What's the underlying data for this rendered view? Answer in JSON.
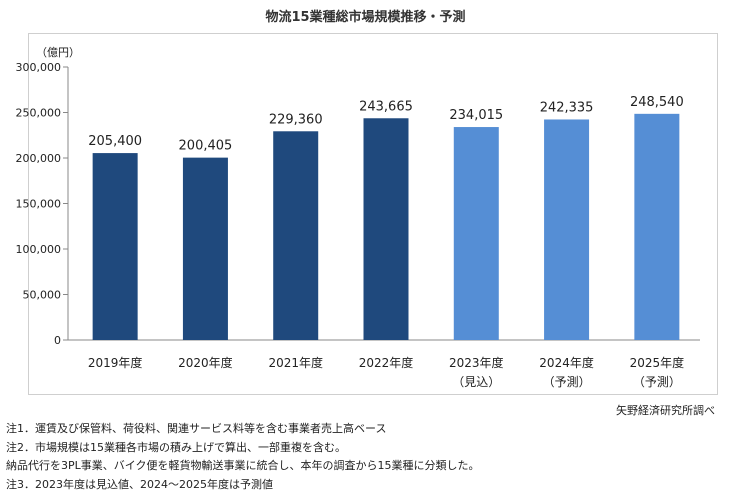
{
  "title": "物流15業種総市場規模推移・予測",
  "source": "矢野経済研究所調べ",
  "notes": [
    "注1．運賃及び保管料、荷役料、関連サービス料等を含む事業者売上高ベース",
    "注2．市場規模は15業種各市場の積み上げで算出、一部重複を含む。",
    "納品代行を3PL事業、バイク便を軽貨物輸送事業に統合し、本年の調査から15業種に分類した。",
    "注3．2023年度は見込値、2024～2025年度は予測値"
  ],
  "colors": {
    "actual": "#1f497d",
    "forecast": "#558ed5"
  },
  "chart_data": {
    "type": "bar",
    "unit_label": "（億円）",
    "categories": [
      "2019年度",
      "2020年度",
      "2021年度",
      "2022年度",
      "2023年度",
      "2024年度",
      "2025年度"
    ],
    "category_sublabels": [
      "",
      "",
      "",
      "",
      "（見込）",
      "（予測）",
      "（予測）"
    ],
    "values": [
      205400,
      200405,
      229360,
      243665,
      234015,
      242335,
      248540
    ],
    "value_labels": [
      "205,400",
      "200,405",
      "229,360",
      "243,665",
      "234,015",
      "242,335",
      "248,540"
    ],
    "kind": [
      "actual",
      "actual",
      "actual",
      "actual",
      "forecast",
      "forecast",
      "forecast"
    ],
    "ylim": [
      0,
      300000
    ],
    "yticks": [
      0,
      50000,
      100000,
      150000,
      200000,
      250000,
      300000
    ],
    "ytick_labels": [
      "0",
      "50,000",
      "100,000",
      "150,000",
      "200,000",
      "250,000",
      "300,000"
    ],
    "grid": false,
    "legend": "none"
  }
}
